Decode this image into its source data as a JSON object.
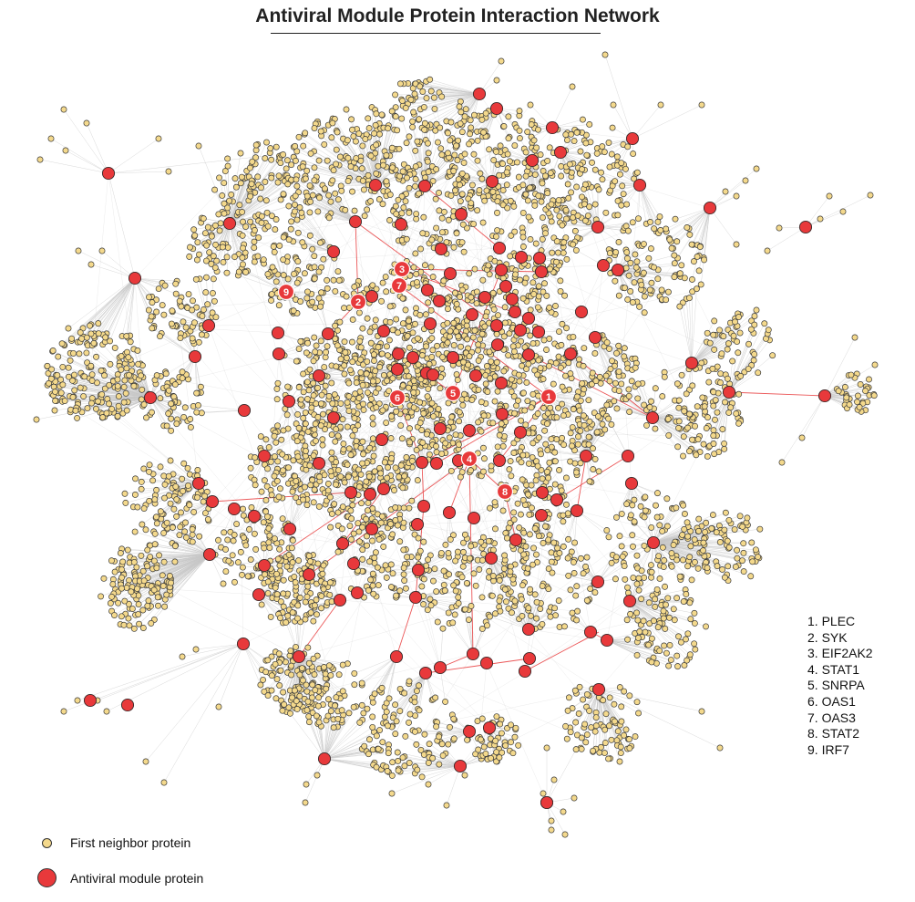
{
  "title": "Antiviral Module Protein Interaction Network",
  "colors": {
    "neighbor_fill": "#f4d98c",
    "neighbor_stroke": "#3a3a3a",
    "module_fill": "#e8393b",
    "module_stroke": "#3a2a2a",
    "edge_gray": "#c8c8c8",
    "edge_red": "#e8393b"
  },
  "legend": {
    "neighbor_label": "First neighbor protein",
    "module_label": "Antiviral module protein"
  },
  "gene_list": [
    "1. PLEC",
    "2. SYK",
    "3. EIF2AK2",
    "4. STAT1",
    "5. SNRPA",
    "6. OAS1",
    "7. OAS3",
    "8. STAT2",
    "9. IRF7"
  ],
  "labeled_hubs": [
    {
      "number": "1",
      "name": "PLEC"
    },
    {
      "number": "2",
      "name": "SYK"
    },
    {
      "number": "3",
      "name": "EIF2AK2"
    },
    {
      "number": "4",
      "name": "STAT1"
    },
    {
      "number": "5",
      "name": "SNRPA"
    },
    {
      "number": "6",
      "name": "OAS1"
    },
    {
      "number": "7",
      "name": "OAS3"
    },
    {
      "number": "8",
      "name": "STAT2"
    },
    {
      "number": "9",
      "name": "IRF7"
    }
  ]
}
